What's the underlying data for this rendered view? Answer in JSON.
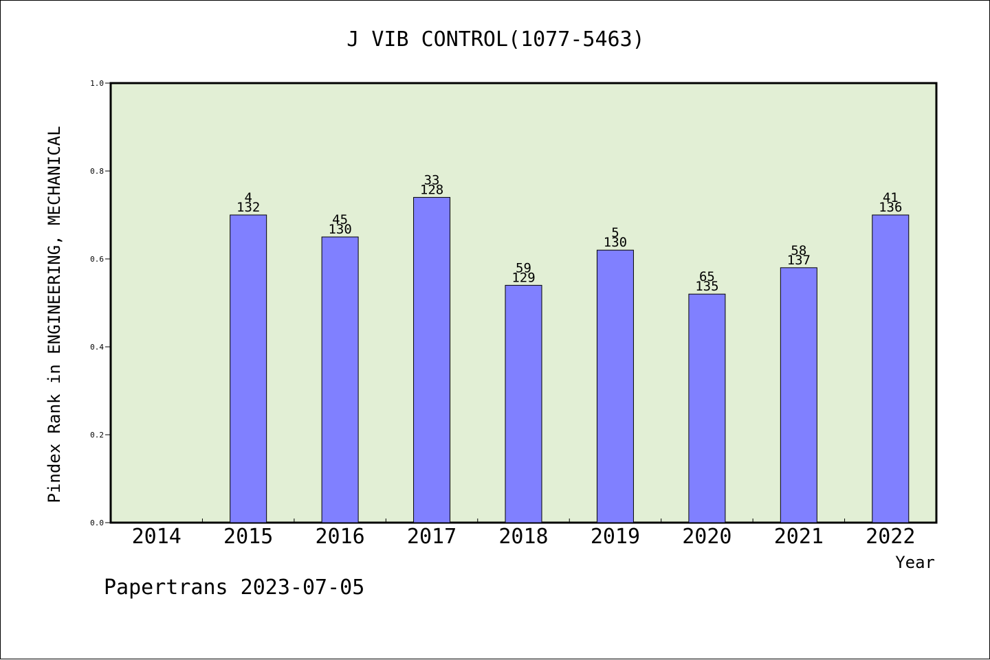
{
  "chart_data": {
    "type": "bar",
    "title": "J VIB CONTROL(1077-5463)",
    "xlabel": "Year",
    "ylabel": "Pindex Rank in ENGINEERING, MECHANICAL",
    "footer": "Papertrans 2023-07-05",
    "categories": [
      "2014",
      "2015",
      "2016",
      "2017",
      "2018",
      "2019",
      "2020",
      "2021",
      "2022"
    ],
    "values": [
      null,
      0.7,
      0.65,
      0.74,
      0.54,
      0.62,
      0.52,
      0.58,
      0.7
    ],
    "ranks": [
      "",
      "4",
      "45",
      "33",
      "59",
      "5",
      "65",
      "58",
      "41"
    ],
    "totals": [
      "",
      "132",
      "130",
      "128",
      "129",
      "130",
      "135",
      "137",
      "136"
    ],
    "ylim": [
      0,
      1.0
    ],
    "yticks": [
      "0.0",
      "0.2",
      "0.4",
      "0.6",
      "0.8",
      "1.0"
    ],
    "grid": false,
    "colors": {
      "plot_background": "#e2efd5",
      "bar_fill": "#8080ff",
      "bar_stroke": "#000000"
    }
  }
}
